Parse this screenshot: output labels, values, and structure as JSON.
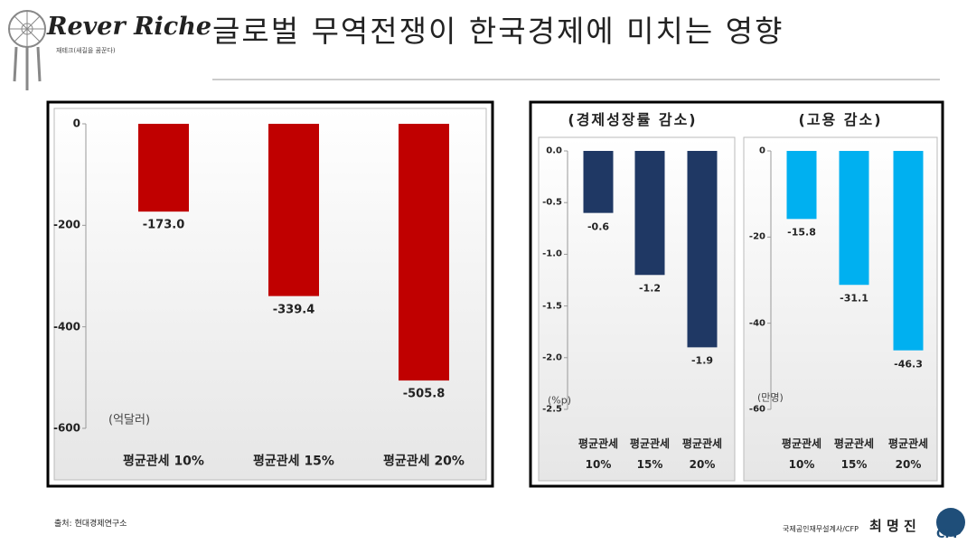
{
  "header": {
    "logo": "Rever Riche",
    "logo_sub": "재테크(새길을 꿈꾼다)",
    "title": "글로벌 무역전쟁이 한국경제에 미치는 영향"
  },
  "source": "출처: 현대경제연구소",
  "footer": {
    "author": "국제공인재무설계사/CFP",
    "name": "최 명 진",
    "cfp": "CFP"
  },
  "chart_data": [
    {
      "type": "bar",
      "annotation": "(억달러)",
      "color": "#c00000",
      "categories": [
        "평균관세 10%",
        "평균관세 15%",
        "평균관세 20%"
      ],
      "values": [
        -173.0,
        -339.4,
        -505.8
      ],
      "value_labels": [
        "-173.0",
        "-339.4",
        "-505.8"
      ],
      "ylim": [
        -600,
        0
      ],
      "yticks": [
        0,
        -200,
        -400,
        -600
      ]
    },
    {
      "type": "bar",
      "title": "(경제성장률 감소)",
      "annotation": "(%p)",
      "color": "#1f3864",
      "categories": [
        "평균관세\n10%",
        "평균관세\n15%",
        "평균관세\n20%"
      ],
      "values": [
        -0.6,
        -1.2,
        -1.9
      ],
      "ylim": [
        -2.5,
        0
      ],
      "yticks": [
        {
          "value": 0,
          "label": "0.0"
        },
        -0.5,
        {
          "value": -1,
          "label": "-1.0"
        },
        -1.5,
        {
          "value": -2,
          "label": "-2.0"
        },
        -2.5
      ]
    },
    {
      "type": "bar",
      "title": "(고용 감소)",
      "annotation": "(만명)",
      "color": "#00b0f0",
      "categories": [
        "평균관세\n10%",
        "평균관세\n15%",
        "평균관세\n20%"
      ],
      "values": [
        -15.8,
        -31.1,
        -46.3
      ],
      "ylim": [
        -60,
        0
      ],
      "yticks": [
        0,
        -20,
        -40,
        -60
      ]
    }
  ]
}
